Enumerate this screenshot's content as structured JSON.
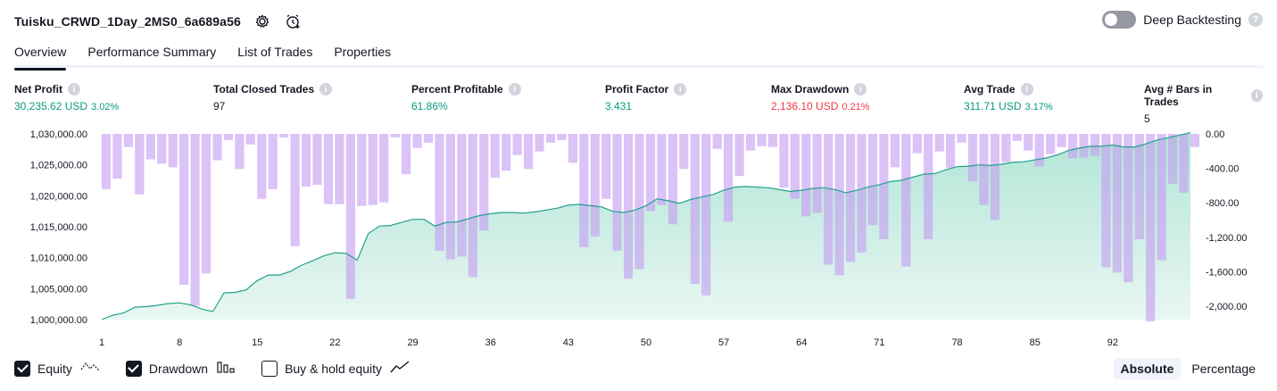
{
  "header": {
    "title": "Tuisku_CRWD_1Day_2MS0_6a689a56",
    "icons": [
      "gear-icon",
      "alarm-add-icon"
    ],
    "deep_backtesting_label": "Deep Backtesting",
    "deep_backtesting_enabled": false
  },
  "tabs": [
    {
      "label": "Overview",
      "active": true
    },
    {
      "label": "Performance Summary",
      "active": false
    },
    {
      "label": "List of Trades",
      "active": false
    },
    {
      "label": "Properties",
      "active": false
    }
  ],
  "metrics": [
    {
      "label": "Net Profit",
      "value": "30,235.62 USD",
      "pct": "3.02%",
      "color": "#089981"
    },
    {
      "label": "Total Closed Trades",
      "value": "97",
      "pct": "",
      "color": "#131722"
    },
    {
      "label": "Percent Profitable",
      "value": "61.86%",
      "pct": "",
      "color": "#089981"
    },
    {
      "label": "Profit Factor",
      "value": "3.431",
      "pct": "",
      "color": "#089981"
    },
    {
      "label": "Max Drawdown",
      "value": "2,136.10 USD",
      "pct": "0.21%",
      "color": "#f23645"
    },
    {
      "label": "Avg Trade",
      "value": "311.71 USD",
      "pct": "3.17%",
      "color": "#089981"
    },
    {
      "label": "Avg # Bars in Trades",
      "value": "5",
      "pct": "",
      "color": "#131722"
    }
  ],
  "chart_data": {
    "type": "area",
    "x_ticks": [
      "1",
      "8",
      "15",
      "22",
      "29",
      "36",
      "43",
      "50",
      "57",
      "64",
      "71",
      "78",
      "85",
      "92"
    ],
    "y_left_ticks": [
      "1,030,000.00",
      "1,025,000.00",
      "1,020,000.00",
      "1,015,000.00",
      "1,010,000.00",
      "1,005,000.00",
      "1,000,000.00"
    ],
    "y_right_ticks": [
      "0.00",
      "-400.00",
      "-800.00",
      "-1,200.00",
      "-1,600.00",
      "-2,000.00"
    ],
    "y_left_range": [
      1000000,
      1030000
    ],
    "y_right_range": [
      -2136,
      0
    ],
    "series": [
      {
        "name": "Equity",
        "color": "#26a69a",
        "values": [
          1000000,
          1000700,
          1001100,
          1002000,
          1002100,
          1002300,
          1002600,
          1002700,
          1002400,
          1001700,
          1001300,
          1004300,
          1004400,
          1004800,
          1006300,
          1007200,
          1007200,
          1007800,
          1008800,
          1009500,
          1010300,
          1010800,
          1010700,
          1009600,
          1013900,
          1015100,
          1015200,
          1015700,
          1016200,
          1016200,
          1015100,
          1015700,
          1015800,
          1016300,
          1016800,
          1017100,
          1017300,
          1017300,
          1017200,
          1017400,
          1017700,
          1018000,
          1018500,
          1018600,
          1018400,
          1018200,
          1017500,
          1017300,
          1017700,
          1018400,
          1019500,
          1019200,
          1018800,
          1019400,
          1019800,
          1020200,
          1020900,
          1021400,
          1021500,
          1021400,
          1021300,
          1021000,
          1020700,
          1020900,
          1021200,
          1021300,
          1021000,
          1020500,
          1020900,
          1021400,
          1021800,
          1022300,
          1022500,
          1023000,
          1023500,
          1023600,
          1024200,
          1024700,
          1024800,
          1025000,
          1024900,
          1025100,
          1025400,
          1025500,
          1025800,
          1026100,
          1026600,
          1027300,
          1027700,
          1028000,
          1028000,
          1028200,
          1027900,
          1027900,
          1028400,
          1029000,
          1029400,
          1029800,
          1030200
        ]
      },
      {
        "name": "Drawdown",
        "color": "#b39ddb",
        "values": [
          -630,
          -510,
          -150,
          -690,
          -290,
          -340,
          -380,
          -1720,
          -1960,
          -1590,
          -300,
          -70,
          -400,
          -120,
          -740,
          -630,
          -40,
          -1280,
          -600,
          -580,
          -800,
          -800,
          -1880,
          -820,
          -810,
          -780,
          -40,
          -460,
          -160,
          -100,
          -1330,
          -1430,
          -1400,
          -1630,
          -1100,
          -500,
          -420,
          -240,
          -400,
          -200,
          -100,
          -70,
          -330,
          -1290,
          -1170,
          -740,
          -1330,
          -1650,
          -1540,
          -880,
          -810,
          -1030,
          -400,
          -1710,
          -1840,
          -170,
          -1000,
          -480,
          -190,
          -140,
          -150,
          -610,
          -740,
          -940,
          -900,
          -1490,
          -1610,
          -1460,
          -1350,
          -1040,
          -1200,
          -380,
          -1510,
          -220,
          -1200,
          -200,
          -390,
          -100,
          -540,
          -810,
          -980,
          -320,
          -80,
          -190,
          -370,
          -230,
          -150,
          -280,
          -270,
          -250,
          -1520,
          -1580,
          -1690,
          -1200,
          -2136,
          -1440,
          -570,
          -670,
          -150
        ]
      }
    ]
  },
  "legend": [
    {
      "label": "Equity",
      "checked": true,
      "icon": "line-zigzag-icon"
    },
    {
      "label": "Drawdown",
      "checked": true,
      "icon": "bars-icon"
    },
    {
      "label": "Buy & hold equity",
      "checked": false,
      "icon": "trend-line-icon"
    }
  ],
  "scale_switch": {
    "absolute_label": "Absolute",
    "percentage_label": "Percentage",
    "selected": "Absolute"
  }
}
